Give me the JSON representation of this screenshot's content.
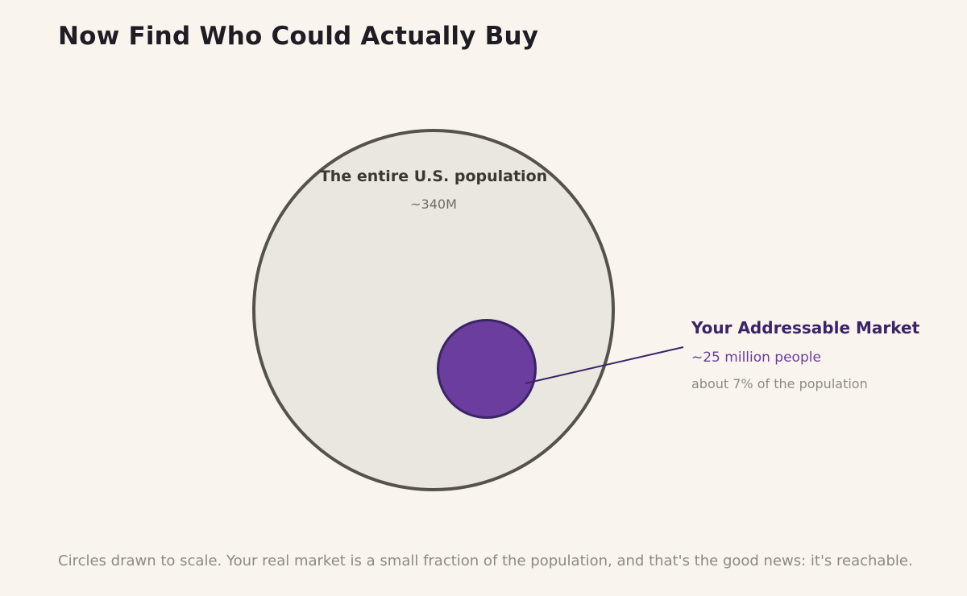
{
  "title": "Now Find Who Could Actually Buy",
  "population": {
    "label": "The entire U.S. population",
    "value_label": "~340M",
    "value_millions": 340
  },
  "market": {
    "label": "Your Addressable Market",
    "value_label": "~25 million people",
    "share_label": "about 7% of the population",
    "value_millions": 25
  },
  "footnote": "Circles drawn to scale. Your real market is a small fraction of the population, and that's the good news: it's reachable.",
  "colors": {
    "background": "#f9f5ee",
    "outer_fill": "#e9e7e0",
    "outer_stroke": "#55524c",
    "inner_fill": "#6b3d9e",
    "inner_stroke": "#3a2366",
    "accent_text": "#3a2366",
    "accent_value": "#6b3d9e"
  }
}
